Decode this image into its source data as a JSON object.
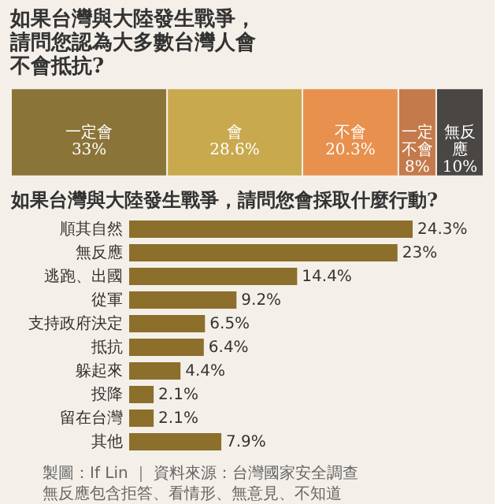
{
  "chart_data": [
    {
      "type": "bar",
      "title": "如果台灣與大陸發生戰爭，請問您認為大多數台灣人會不會抵抗?",
      "orientation": "horizontal",
      "stacked": true,
      "categories": [
        null
      ],
      "series": [
        {
          "name": "一定會",
          "color": "#8a7438",
          "values": [
            33
          ],
          "value_labels": [
            "33%"
          ]
        },
        {
          "name": "會",
          "color": "#c9a94d",
          "values": [
            28.6
          ],
          "value_labels": [
            "28.6%"
          ]
        },
        {
          "name": "不會",
          "color": "#e8904e",
          "values": [
            20.3
          ],
          "value_labels": [
            "20.3%"
          ]
        },
        {
          "name": "一定不會",
          "color": "#c47a4a",
          "values": [
            8
          ],
          "value_labels": [
            "8%"
          ]
        },
        {
          "name": "無反應",
          "color": "#4a4644",
          "values": [
            10
          ],
          "value_labels": [
            "10%"
          ]
        }
      ]
    },
    {
      "type": "bar",
      "title": "如果台灣與大陸發生戰爭，請問您會採取什麼行動?",
      "orientation": "horizontal",
      "categories": [
        "順其自然",
        "無反應",
        "逃跑、出國",
        "從軍",
        "支持政府決定",
        "抵抗",
        "躲起來",
        "投降",
        "留在台灣",
        "其他"
      ],
      "values": [
        24.3,
        23,
        14.4,
        9.2,
        6.5,
        6.4,
        4.4,
        2.1,
        2.1,
        7.9
      ],
      "value_labels": [
        "24.3%",
        "23%",
        "14.4%",
        "9.2%",
        "6.5%",
        "6.4%",
        "4.4%",
        "2.1%",
        "2.1%",
        "7.9%"
      ],
      "color": "#8b6f2b",
      "annotations": [
        "製圖：If Lin ｜ 資料來源：台灣國家安全調查",
        "無反應包含拒答、看情形、無意見、不知道"
      ]
    }
  ]
}
